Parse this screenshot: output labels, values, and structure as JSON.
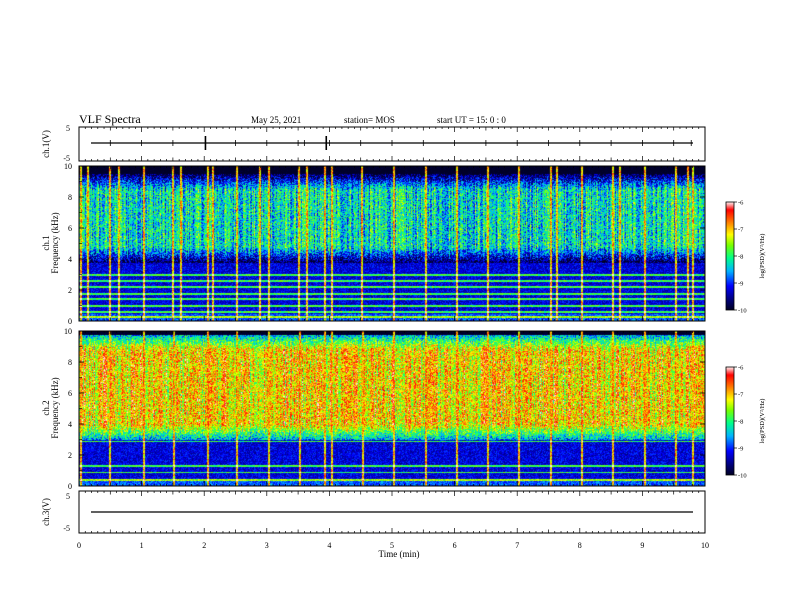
{
  "header": {
    "title": "VLF Spectra",
    "date": "May 25, 2021",
    "station": "station= MOS",
    "start": "start  UT =   15: 0  : 0"
  },
  "chart_data": [
    {
      "type": "line",
      "name": "ch1-waveform",
      "ylabel": "ch.1(V)",
      "ylim": [
        -5,
        5
      ],
      "yticks": [
        "5",
        "-5"
      ],
      "xlim": [
        0,
        10
      ],
      "baseline_value": 0,
      "spikes_min": [
        0.5,
        1.0,
        1.5,
        2.02,
        2.5,
        3.0,
        3.5,
        3.6,
        3.95,
        4.0,
        4.5,
        5.0,
        5.5,
        6.0,
        6.5,
        7.0,
        7.5,
        8.0,
        8.5,
        9.0,
        9.5,
        9.78
      ]
    },
    {
      "type": "heatmap",
      "name": "ch1-spectrogram",
      "ylabel": "Frequency (kHz)",
      "ylabel_prefix": "ch.1",
      "ylim": [
        0,
        10
      ],
      "yticks": [
        0,
        2,
        4,
        6,
        8,
        10
      ],
      "xlim": [
        0,
        10
      ],
      "colorbar": {
        "label": "log(PSD)(V²/Hz)",
        "ticks": [
          "-6",
          "-7",
          "-8",
          "-9",
          "-10"
        ],
        "range": [
          -10,
          -6
        ]
      },
      "band_khz": [
        3.8,
        9.5
      ],
      "band_level": -8.2,
      "horizontal_lines_khz": [
        0.3,
        0.6,
        1.0,
        1.45,
        1.8,
        2.2,
        2.6,
        3.0
      ],
      "spike_times_min": [
        0.02,
        0.12,
        0.48,
        0.62,
        1.02,
        1.48,
        1.62,
        2.04,
        2.12,
        2.5,
        2.88,
        3.02,
        3.5,
        3.62,
        3.92,
        4.02,
        4.5,
        5.02,
        5.52,
        6.02,
        6.52,
        7.02,
        7.52,
        7.62,
        8.02,
        8.52,
        8.62,
        9.02,
        9.52,
        9.72,
        9.8
      ]
    },
    {
      "type": "heatmap",
      "name": "ch2-spectrogram",
      "ylabel": "Frequency (kHz)",
      "ylabel_prefix": "ch.2",
      "ylim": [
        0,
        10
      ],
      "yticks": [
        0,
        2,
        4,
        6,
        8,
        10
      ],
      "xlim": [
        0,
        10
      ],
      "colorbar": {
        "label": "log(PSD)(V²/Hz)",
        "ticks": [
          "-6",
          "-7",
          "-8",
          "-9",
          "-10"
        ],
        "range": [
          -10,
          -6
        ]
      },
      "band_khz": [
        3.0,
        9.8
      ],
      "band_level": -7.0,
      "horizontal_lines_khz": [
        0.4,
        0.9,
        1.3,
        2.9
      ],
      "spike_times_min": [
        0.02,
        0.48,
        1.02,
        1.5,
        2.04,
        2.5,
        3.02,
        3.52,
        3.92,
        4.02,
        4.52,
        5.02,
        5.52,
        6.02,
        6.52,
        7.02,
        7.52,
        8.02,
        8.52,
        9.02,
        9.52,
        9.8
      ]
    },
    {
      "type": "line",
      "name": "ch3-waveform",
      "ylabel": "ch.3(V)",
      "ylim": [
        -5,
        5
      ],
      "yticks": [
        "5",
        "-5"
      ],
      "xlim": [
        0,
        10
      ],
      "baseline_value": 0,
      "spikes_min": []
    }
  ],
  "xaxis": {
    "label": "Time  (min)",
    "ticks": [
      "0",
      "1",
      "2",
      "3",
      "4",
      "5",
      "6",
      "7",
      "8",
      "9",
      "10"
    ]
  },
  "colors": {
    "palette": [
      "#000060",
      "#0000ff",
      "#00c0ff",
      "#00ff80",
      "#80ff00",
      "#ffff00",
      "#ff8000",
      "#ff0000",
      "#ffffff"
    ]
  }
}
